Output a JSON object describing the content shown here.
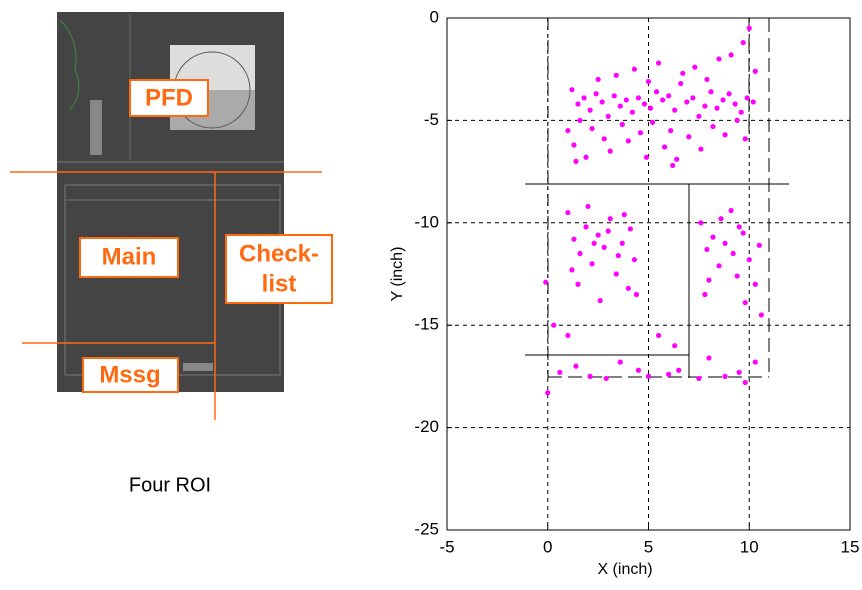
{
  "roi_figure": {
    "labels": {
      "pfd": "PFD",
      "main": "Main",
      "checklist": [
        "Check-",
        "list"
      ],
      "mssg": "Mssg"
    },
    "caption": "Four ROI"
  },
  "chart_data": {
    "type": "scatter",
    "xlabel": "X (inch)",
    "ylabel": "Y (inch)",
    "color": "#ff00ff",
    "grid": true,
    "xlim": [
      -5,
      15
    ],
    "xticks": [
      -5,
      0,
      5,
      10,
      15
    ],
    "ylim": [
      -25,
      0
    ],
    "yticks": [
      -25,
      -20,
      -15,
      -10,
      -5,
      0
    ],
    "x": [
      1.2,
      1.5,
      1.8,
      2.1,
      2.4,
      2.7,
      3.0,
      3.3,
      3.6,
      3.9,
      4.2,
      4.5,
      4.8,
      5.1,
      5.4,
      5.7,
      6.0,
      6.3,
      6.6,
      6.9,
      7.2,
      7.5,
      7.8,
      8.1,
      8.4,
      8.7,
      9.0,
      9.3,
      9.6,
      9.9,
      10.2,
      1.0,
      1.3,
      1.6,
      1.9,
      2.2,
      2.5,
      2.8,
      3.1,
      3.4,
      3.7,
      4.0,
      4.3,
      4.6,
      4.9,
      5.2,
      5.5,
      5.8,
      6.1,
      6.4,
      6.7,
      7.0,
      7.3,
      7.6,
      7.9,
      8.2,
      8.5,
      8.8,
      9.1,
      9.4,
      9.7,
      10.0,
      10.3,
      9.8,
      6.2,
      1.4,
      5.0,
      1.0,
      1.3,
      1.6,
      1.9,
      2.2,
      2.5,
      2.8,
      3.1,
      3.4,
      3.7,
      4.0,
      4.3,
      1.5,
      2.0,
      2.6,
      3.0,
      3.5,
      4.1,
      1.2,
      2.3,
      4.4,
      3.8,
      -0.1,
      7.6,
      7.9,
      8.2,
      8.5,
      8.8,
      9.1,
      9.4,
      9.7,
      10.0,
      10.3,
      8.0,
      8.6,
      9.2,
      9.8,
      10.5,
      7.8,
      10.6,
      9.5,
      0.3,
      0.6,
      1.0,
      1.4,
      2.1,
      2.9,
      3.6,
      4.5,
      5.0,
      6.0,
      6.5,
      6.3,
      7.5,
      8.0,
      8.8,
      9.5,
      9.8,
      10.3,
      0.0,
      5.5
    ],
    "values": [
      -3.5,
      -4.2,
      -3.9,
      -4.5,
      -3.7,
      -4.1,
      -4.8,
      -3.8,
      -4.3,
      -4.0,
      -4.6,
      -3.9,
      -4.2,
      -4.4,
      -3.6,
      -4.0,
      -3.8,
      -4.5,
      -3.2,
      -4.1,
      -3.9,
      -4.8,
      -4.3,
      -3.6,
      -4.4,
      -4.0,
      -3.7,
      -4.2,
      -4.6,
      -3.9,
      -4.1,
      -5.5,
      -6.2,
      -5.0,
      -6.8,
      -5.4,
      -3.0,
      -5.9,
      -6.5,
      -2.8,
      -5.2,
      -6.0,
      -2.5,
      -5.6,
      -6.8,
      -5.1,
      -2.2,
      -6.3,
      -5.5,
      -6.9,
      -2.7,
      -5.8,
      -2.4,
      -6.4,
      -3.0,
      -5.3,
      -2.0,
      -5.7,
      -1.8,
      -5.0,
      -1.2,
      -0.5,
      -2.6,
      -5.9,
      -7.2,
      -7.0,
      -3.1,
      -9.5,
      -10.8,
      -11.5,
      -10.2,
      -12.0,
      -10.6,
      -11.2,
      -9.8,
      -12.5,
      -11.0,
      -13.2,
      -11.8,
      -13.0,
      -9.2,
      -13.8,
      -10.4,
      -11.6,
      -10.3,
      -12.3,
      -11.0,
      -13.5,
      -9.6,
      -12.9,
      -10.0,
      -11.3,
      -10.7,
      -12.1,
      -11.0,
      -9.4,
      -12.6,
      -10.5,
      -11.8,
      -13.0,
      -12.8,
      -9.8,
      -11.5,
      -13.9,
      -11.1,
      -13.5,
      -14.5,
      -10.2,
      -15.0,
      -17.3,
      -15.5,
      -17.0,
      -17.5,
      -17.6,
      -16.8,
      -17.2,
      -17.5,
      -17.4,
      -17.2,
      -16.0,
      -17.6,
      -16.6,
      -17.5,
      -17.3,
      -17.8,
      -16.8,
      -18.3,
      -15.5
    ]
  }
}
